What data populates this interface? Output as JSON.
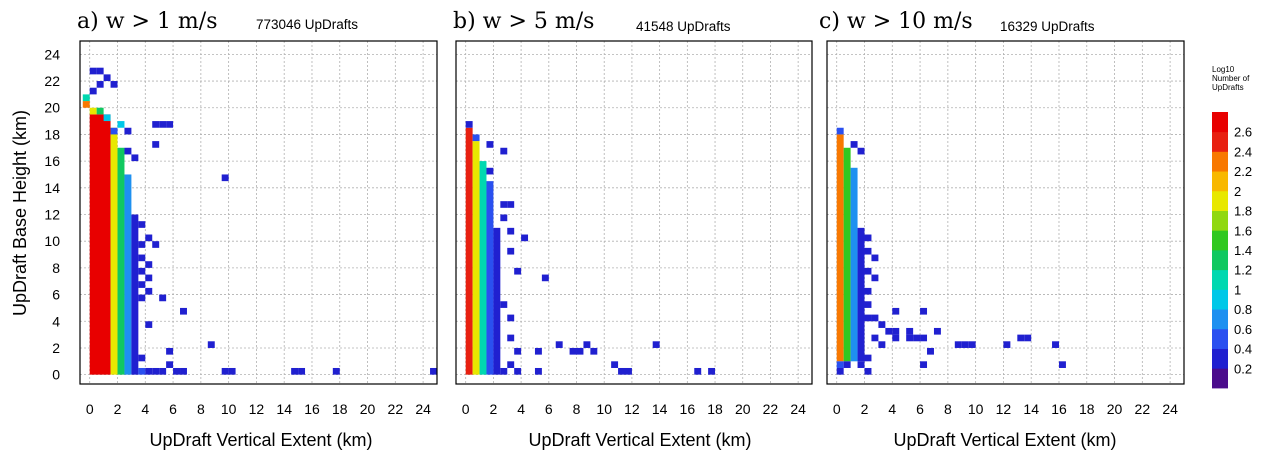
{
  "chart_data": {
    "type": "heatmap",
    "shared_ylabel": "UpDraft Base Height (km)",
    "xlabel": "UpDraft Vertical Extent (km)",
    "xlim": [
      -0.7,
      25
    ],
    "ylim": [
      -0.7,
      25
    ],
    "xticks": [
      "0",
      "2",
      "4",
      "6",
      "8",
      "10",
      "12",
      "14",
      "16",
      "18",
      "20",
      "22",
      "24"
    ],
    "yticks": [
      "0",
      "2",
      "4",
      "6",
      "8",
      "10",
      "12",
      "14",
      "16",
      "18",
      "20",
      "22",
      "24"
    ],
    "grid": true,
    "bin_size_km": 0.5,
    "colorbar": {
      "title": [
        "Log10",
        "Number of",
        "UpDrafts"
      ],
      "ticks": [
        "0.2",
        "0.4",
        "0.6",
        "0.8",
        "1",
        "1.2",
        "1.4",
        "1.6",
        "1.8",
        "2",
        "2.2",
        "2.4",
        "2.6"
      ],
      "range": [
        0,
        2.8
      ],
      "colors": [
        "#4b0c8c",
        "#2020d0",
        "#2a50f0",
        "#1e90f0",
        "#00c8e8",
        "#00d8b0",
        "#10c860",
        "#30c820",
        "#90d810",
        "#e8e800",
        "#f8b800",
        "#f87800",
        "#e82010",
        "#e80000"
      ]
    },
    "panels": [
      {
        "label": "a) w > 1 m/s",
        "count_label": "773046 UpDrafts",
        "cells": [
          {
            "x": 0,
            "y": 0,
            "v": 2.6,
            "dx": 1.5,
            "dy": 19.5
          },
          {
            "x": 1.5,
            "y": 0,
            "v": 1.9,
            "dx": 0.5,
            "dy": 18.5
          },
          {
            "x": 2,
            "y": 0,
            "v": 1.2,
            "dx": 0.5,
            "dy": 17
          },
          {
            "x": 2.5,
            "y": 0,
            "v": 0.7,
            "dx": 0.5,
            "dy": 15
          },
          {
            "x": 3,
            "y": 0,
            "v": 0.35,
            "dx": 0.5,
            "dy": 12
          },
          {
            "x": -0.5,
            "y": 20,
            "v": 2.2
          },
          {
            "x": -0.5,
            "y": 20.5,
            "v": 1.0
          },
          {
            "x": 0,
            "y": 19.5,
            "v": 1.8
          },
          {
            "x": 0.5,
            "y": 19.5,
            "v": 1.2
          },
          {
            "x": 1,
            "y": 19,
            "v": 0.8
          },
          {
            "x": 0,
            "y": 21,
            "v": 0.2
          },
          {
            "x": 0.5,
            "y": 21.5,
            "v": 0.25
          },
          {
            "x": 1.5,
            "y": 21.5,
            "v": 0.2
          },
          {
            "x": 0,
            "y": 22.5,
            "v": 0.2
          },
          {
            "x": 0.5,
            "y": 22.5,
            "v": 0.2
          },
          {
            "x": 1,
            "y": 22,
            "v": 0.2
          },
          {
            "x": 1.5,
            "y": 18,
            "v": 0.4
          },
          {
            "x": 2,
            "y": 18.5,
            "v": 0.8
          },
          {
            "x": 2.5,
            "y": 18,
            "v": 0.3
          },
          {
            "x": 4.5,
            "y": 18.5,
            "v": 0.2
          },
          {
            "x": 5,
            "y": 18.5,
            "v": 0.2
          },
          {
            "x": 5.5,
            "y": 18.5,
            "v": 0.2
          },
          {
            "x": 2.5,
            "y": 16.5,
            "v": 0.2
          },
          {
            "x": 3,
            "y": 16,
            "v": 0.2
          },
          {
            "x": 4.5,
            "y": 17,
            "v": 0.2
          },
          {
            "x": 9.5,
            "y": 14.5,
            "v": 0.2
          },
          {
            "x": 3.5,
            "y": 11,
            "v": 0.2
          },
          {
            "x": 3.5,
            "y": 9.5,
            "v": 0.2
          },
          {
            "x": 4,
            "y": 10,
            "v": 0.2
          },
          {
            "x": 3.5,
            "y": 8.5,
            "v": 0.25
          },
          {
            "x": 4,
            "y": 8,
            "v": 0.2
          },
          {
            "x": 3.5,
            "y": 7.5,
            "v": 0.25
          },
          {
            "x": 4,
            "y": 7,
            "v": 0.2
          },
          {
            "x": 3.5,
            "y": 6.5,
            "v": 0.2
          },
          {
            "x": 4,
            "y": 6,
            "v": 0.2
          },
          {
            "x": 3.5,
            "y": 5.5,
            "v": 0.2
          },
          {
            "x": 5,
            "y": 5.5,
            "v": 0.2
          },
          {
            "x": 4.5,
            "y": 9.5,
            "v": 0.2
          },
          {
            "x": 6.5,
            "y": 4.5,
            "v": 0.2
          },
          {
            "x": 4,
            "y": 3.5,
            "v": 0.2
          },
          {
            "x": 5.5,
            "y": 1.5,
            "v": 0.2
          },
          {
            "x": 8.5,
            "y": 2,
            "v": 0.2
          },
          {
            "x": 3.5,
            "y": 1,
            "v": 0.2
          },
          {
            "x": 3.5,
            "y": 0,
            "v": 0.4
          },
          {
            "x": 4,
            "y": 0,
            "v": 0.3
          },
          {
            "x": 4.5,
            "y": 0,
            "v": 0.25
          },
          {
            "x": 5,
            "y": 0,
            "v": 0.2
          },
          {
            "x": 5.5,
            "y": 0.5,
            "v": 0.2
          },
          {
            "x": 6,
            "y": 0,
            "v": 0.2
          },
          {
            "x": 6.5,
            "y": 0,
            "v": 0.2
          },
          {
            "x": 9.5,
            "y": 0,
            "v": 0.2
          },
          {
            "x": 10,
            "y": 0,
            "v": 0.2
          },
          {
            "x": 14.5,
            "y": 0,
            "v": 0.2
          },
          {
            "x": 15,
            "y": 0,
            "v": 0.2
          },
          {
            "x": 17.5,
            "y": 0,
            "v": 0.2
          },
          {
            "x": 24.5,
            "y": 0,
            "v": 0.2
          }
        ]
      },
      {
        "label": "b) w > 5 m/s",
        "count_label": "41548 UpDrafts",
        "cells": [
          {
            "x": 0,
            "y": 0,
            "v": 2.5,
            "dx": 0.5,
            "dy": 18.5
          },
          {
            "x": 0.5,
            "y": 0,
            "v": 1.8,
            "dx": 0.5,
            "dy": 17.5
          },
          {
            "x": 1,
            "y": 0,
            "v": 1.0,
            "dx": 0.5,
            "dy": 16
          },
          {
            "x": 1.5,
            "y": 0,
            "v": 0.45,
            "dx": 0.5,
            "dy": 14.5
          },
          {
            "x": 2,
            "y": 0,
            "v": 0.2,
            "dx": 0.5,
            "dy": 11
          },
          {
            "x": 0,
            "y": 18.5,
            "v": 0.3
          },
          {
            "x": 0.5,
            "y": 17.5,
            "v": 0.5
          },
          {
            "x": 1.5,
            "y": 17,
            "v": 0.2
          },
          {
            "x": 2.5,
            "y": 16.5,
            "v": 0.2
          },
          {
            "x": 1.5,
            "y": 15,
            "v": 0.2
          },
          {
            "x": 2.5,
            "y": 12.5,
            "v": 0.2
          },
          {
            "x": 3,
            "y": 12.5,
            "v": 0.2
          },
          {
            "x": 2.5,
            "y": 11.5,
            "v": 0.2
          },
          {
            "x": 3,
            "y": 10.5,
            "v": 0.2
          },
          {
            "x": 4,
            "y": 10,
            "v": 0.2
          },
          {
            "x": 3,
            "y": 9,
            "v": 0.2
          },
          {
            "x": 3.5,
            "y": 7.5,
            "v": 0.2
          },
          {
            "x": 5.5,
            "y": 7,
            "v": 0.2
          },
          {
            "x": 2.5,
            "y": 5,
            "v": 0.2
          },
          {
            "x": 3,
            "y": 4,
            "v": 0.2
          },
          {
            "x": 3,
            "y": 2.5,
            "v": 0.2
          },
          {
            "x": 3.5,
            "y": 1.5,
            "v": 0.2
          },
          {
            "x": 5,
            "y": 1.5,
            "v": 0.2
          },
          {
            "x": 6.5,
            "y": 2,
            "v": 0.2
          },
          {
            "x": 7.5,
            "y": 1.5,
            "v": 0.2
          },
          {
            "x": 8,
            "y": 1.5,
            "v": 0.2
          },
          {
            "x": 8.5,
            "y": 2,
            "v": 0.2
          },
          {
            "x": 9,
            "y": 1.5,
            "v": 0.2
          },
          {
            "x": 13.5,
            "y": 2,
            "v": 0.2
          },
          {
            "x": 2.5,
            "y": 0,
            "v": 0.3
          },
          {
            "x": 3,
            "y": 0.5,
            "v": 0.2
          },
          {
            "x": 3.5,
            "y": 0,
            "v": 0.2
          },
          {
            "x": 5,
            "y": 0,
            "v": 0.2
          },
          {
            "x": 10.5,
            "y": 0.5,
            "v": 0.2
          },
          {
            "x": 11,
            "y": 0,
            "v": 0.2
          },
          {
            "x": 11.5,
            "y": 0,
            "v": 0.2
          },
          {
            "x": 16.5,
            "y": 0,
            "v": 0.2
          },
          {
            "x": 17.5,
            "y": 0,
            "v": 0.2
          }
        ]
      },
      {
        "label": "c) w > 10 m/s",
        "count_label": "16329 UpDrafts",
        "cells": [
          {
            "x": 0,
            "y": 1,
            "v": 2.3,
            "dx": 0.5,
            "dy": 17
          },
          {
            "x": 0.5,
            "y": 1,
            "v": 1.5,
            "dx": 0.5,
            "dy": 16
          },
          {
            "x": 1,
            "y": 1,
            "v": 0.6,
            "dx": 0.5,
            "dy": 14.5
          },
          {
            "x": 1.5,
            "y": 1,
            "v": 0.25,
            "dx": 0.5,
            "dy": 10
          },
          {
            "x": 0,
            "y": 0.5,
            "v": 0.4
          },
          {
            "x": 0.5,
            "y": 0.5,
            "v": 0.3
          },
          {
            "x": 0,
            "y": 0,
            "v": 0.2
          },
          {
            "x": 0,
            "y": 18,
            "v": 0.5
          },
          {
            "x": 1,
            "y": 17,
            "v": 0.2
          },
          {
            "x": 1.5,
            "y": 16.5,
            "v": 0.2
          },
          {
            "x": 2,
            "y": 10,
            "v": 0.2
          },
          {
            "x": 2,
            "y": 9,
            "v": 0.2
          },
          {
            "x": 2.5,
            "y": 8.5,
            "v": 0.2
          },
          {
            "x": 2,
            "y": 7.5,
            "v": 0.2
          },
          {
            "x": 2.5,
            "y": 7,
            "v": 0.2
          },
          {
            "x": 2,
            "y": 6,
            "v": 0.2
          },
          {
            "x": 2,
            "y": 5,
            "v": 0.2
          },
          {
            "x": 2,
            "y": 4,
            "v": 0.25
          },
          {
            "x": 2.5,
            "y": 4,
            "v": 0.2
          },
          {
            "x": 3,
            "y": 3.5,
            "v": 0.2
          },
          {
            "x": 3.5,
            "y": 3,
            "v": 0.2
          },
          {
            "x": 4,
            "y": 4.5,
            "v": 0.2
          },
          {
            "x": 6,
            "y": 4.5,
            "v": 0.2
          },
          {
            "x": 4,
            "y": 3,
            "v": 0.2
          },
          {
            "x": 5,
            "y": 3,
            "v": 0.2
          },
          {
            "x": 2.5,
            "y": 2.5,
            "v": 0.25
          },
          {
            "x": 3,
            "y": 2,
            "v": 0.2
          },
          {
            "x": 4,
            "y": 2.5,
            "v": 0.2
          },
          {
            "x": 5,
            "y": 2.5,
            "v": 0.2
          },
          {
            "x": 5.5,
            "y": 2.5,
            "v": 0.2
          },
          {
            "x": 6,
            "y": 2.5,
            "v": 0.2
          },
          {
            "x": 7,
            "y": 3,
            "v": 0.2
          },
          {
            "x": 6.5,
            "y": 1.5,
            "v": 0.2
          },
          {
            "x": 8.5,
            "y": 2,
            "v": 0.2
          },
          {
            "x": 9,
            "y": 2,
            "v": 0.2
          },
          {
            "x": 9.5,
            "y": 2,
            "v": 0.2
          },
          {
            "x": 12,
            "y": 2,
            "v": 0.2
          },
          {
            "x": 13,
            "y": 2.5,
            "v": 0.2
          },
          {
            "x": 13.5,
            "y": 2.5,
            "v": 0.2
          },
          {
            "x": 15.5,
            "y": 2,
            "v": 0.2
          },
          {
            "x": 2,
            "y": 1,
            "v": 0.2
          },
          {
            "x": 1.5,
            "y": 0.5,
            "v": 0.2
          },
          {
            "x": 2,
            "y": 0,
            "v": 0.2
          },
          {
            "x": 6,
            "y": 0.5,
            "v": 0.2
          },
          {
            "x": 16,
            "y": 0.5,
            "v": 0.2
          }
        ]
      }
    ]
  }
}
